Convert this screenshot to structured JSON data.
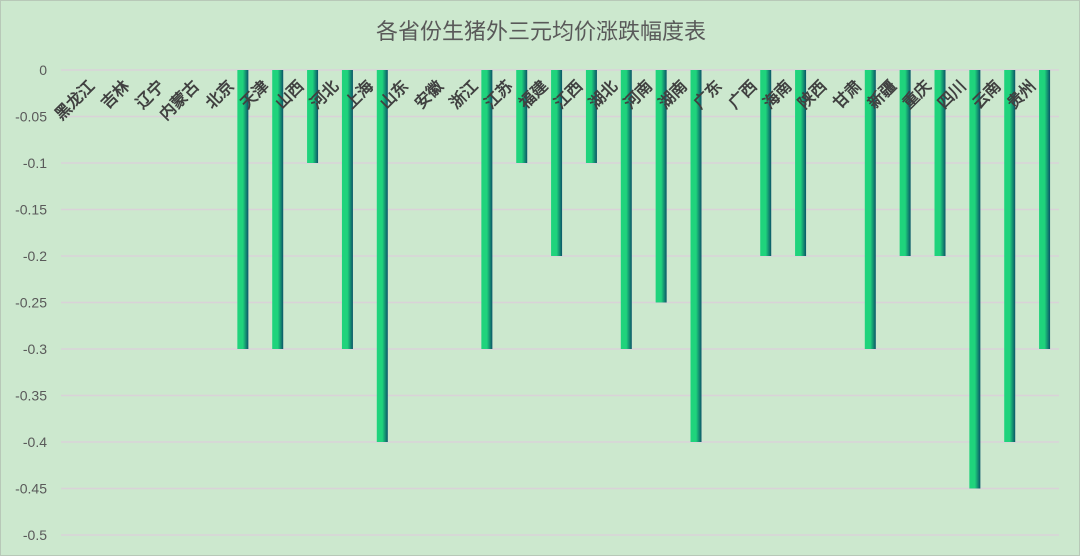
{
  "chart_data": {
    "type": "bar",
    "title": "各省份生猪外三元均价涨跌幅度表",
    "xlabel": "",
    "ylabel": "",
    "ylim": [
      -0.5,
      0
    ],
    "yticks": [
      0,
      -0.05,
      -0.1,
      -0.15,
      -0.2,
      -0.25,
      -0.3,
      -0.35,
      -0.4,
      -0.45,
      -0.5
    ],
    "ytick_labels": [
      "0",
      "-0.05",
      "-0.1",
      "-0.15",
      "-0.2",
      "-0.25",
      "-0.3",
      "-0.35",
      "-0.4",
      "-0.45",
      "-0.5"
    ],
    "grid": true,
    "legend": "none",
    "categories": [
      "黑龙江",
      "吉林",
      "辽宁",
      "内蒙古",
      "北京",
      "天津",
      "山西",
      "河北",
      "上海",
      "山东",
      "安徽",
      "浙江",
      "江苏",
      "福建",
      "江西",
      "湖北",
      "河南",
      "湖南",
      "广东",
      "广西",
      "海南",
      "陕西",
      "甘肃",
      "新疆",
      "重庆",
      "四川",
      "云南",
      "贵州"
    ],
    "values": [
      0,
      0,
      0,
      0,
      -0.3,
      -0.3,
      -0.1,
      -0.3,
      -0.4,
      0,
      0,
      -0.3,
      -0.1,
      -0.2,
      -0.1,
      -0.3,
      -0.25,
      -0.4,
      0,
      -0.2,
      -0.2,
      0,
      -0.3,
      -0.2,
      -0.2,
      -0.45,
      -0.4,
      -0.3
    ],
    "colors": {
      "bar_light": "#1fd37c",
      "bar_dark": "#0a5468",
      "background": "#cce8ce",
      "grid": "#d9d2d8"
    }
  }
}
